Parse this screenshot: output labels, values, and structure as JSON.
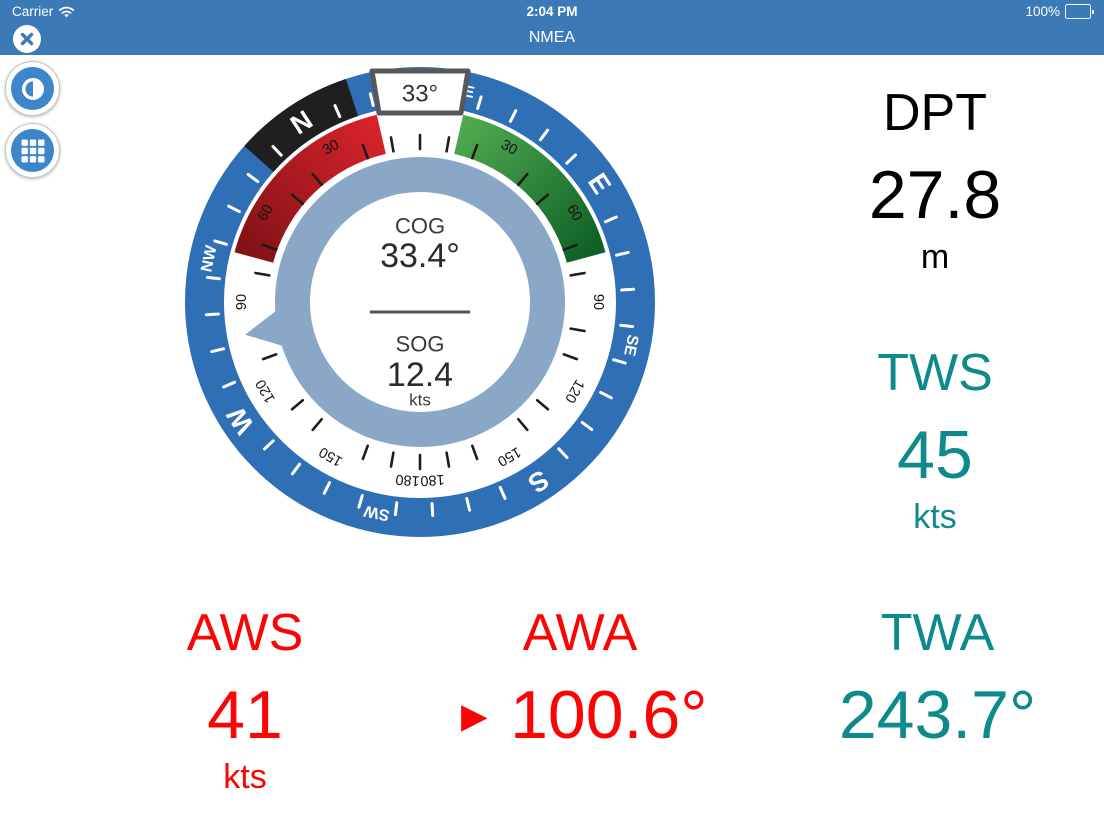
{
  "status_bar": {
    "carrier": "Carrier",
    "time": "2:04 PM",
    "battery_percent": "100%"
  },
  "nav_bar": {
    "title": "NMEA"
  },
  "colors": {
    "header_blue": "#3b79b7",
    "button_blue": "#3e86cb",
    "ring_blue": "#2f6fb5",
    "light_ring_blue": "#8aa7c7",
    "black_segment": "#1f1f1f",
    "box_border": "#58585a",
    "tick_dark": "#1d1d1d",
    "center_text": "#2b2b2b",
    "teal": "#0e8a8d",
    "red": "#fa0404",
    "black_text": "#000000",
    "arc_red_start": "#d7222b",
    "arc_red_end": "#821316",
    "arc_green_start": "#4fa84e",
    "arc_green_end": "#0f6127"
  },
  "compass": {
    "heading_deg": 33.4,
    "heading_box_label": "33°",
    "cog_label": "COG",
    "cog_value": "33.4°",
    "sog_label": "SOG",
    "sog_value": "12.4",
    "sog_unit": "kts",
    "cardinals": [
      [
        "N",
        0
      ],
      [
        "NE",
        45
      ],
      [
        "E",
        90
      ],
      [
        "SE",
        135
      ],
      [
        "S",
        180
      ],
      [
        "SW",
        225
      ],
      [
        "W",
        270
      ],
      [
        "NW",
        315
      ]
    ],
    "scale_numbers": [
      30,
      60,
      90,
      120,
      150
    ],
    "scale_end_number": 180,
    "arc_from_deg": 13,
    "arc_to_deg": 75,
    "north_segment_halfwidth_deg": 15,
    "wind_pointer_deg": -100.6
  },
  "metrics": {
    "dpt": {
      "label": "DPT",
      "value": "27.8",
      "unit": "m",
      "color": "#000000"
    },
    "tws": {
      "label": "TWS",
      "value": "45",
      "unit": "kts",
      "color": "#0e8a8d"
    },
    "aws": {
      "label": "AWS",
      "value": "41",
      "unit": "kts",
      "color": "#fa0404"
    },
    "awa": {
      "label": "AWA",
      "value": "100.6°",
      "arrow": "►",
      "color": "#fa0404"
    },
    "twa": {
      "label": "TWA",
      "value": "243.7°",
      "color": "#0e8a8d"
    }
  }
}
